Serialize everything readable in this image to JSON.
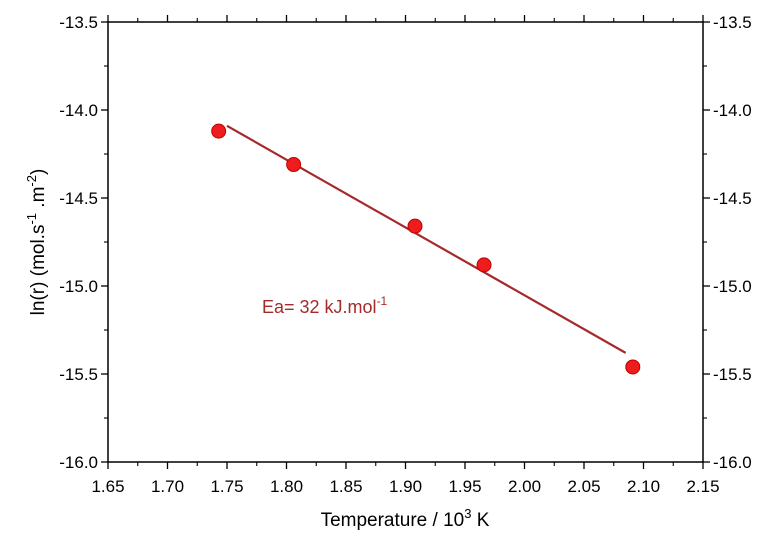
{
  "chart_data": {
    "type": "scatter",
    "xlabel": {
      "main": "Temperature / 10",
      "sup": "3",
      "unit": " K"
    },
    "ylabel": {
      "p1": "ln(r) (mol.s",
      "sup1": "-1",
      "p2": " .m",
      "sup2": "-2",
      "p3": ")"
    },
    "xlim": [
      1.65,
      2.15
    ],
    "ylim": [
      -16.0,
      -13.5
    ],
    "x_ticks": [
      "1.65",
      "1.70",
      "1.75",
      "1.80",
      "1.85",
      "1.90",
      "1.95",
      "2.00",
      "2.05",
      "2.10",
      "2.15"
    ],
    "y_ticks": [
      "-13.5",
      "-14.0",
      "-14.5",
      "-15.0",
      "-15.5",
      "-16.0"
    ],
    "points": [
      {
        "x": 1.743,
        "y": -14.12
      },
      {
        "x": 1.806,
        "y": -14.31
      },
      {
        "x": 1.908,
        "y": -14.66
      },
      {
        "x": 1.966,
        "y": -14.88
      },
      {
        "x": 2.091,
        "y": -15.46
      }
    ],
    "fit_line": {
      "x": [
        1.75,
        2.085
      ],
      "y": [
        -14.09,
        -15.38
      ]
    },
    "annotation": {
      "text": "Ea= 32 kJ.mol",
      "sup": "-1"
    },
    "colors": {
      "points": "#ee1c1c",
      "point_edge": "#c00000",
      "fit": "#a52a2a",
      "axes": "#000000"
    }
  }
}
